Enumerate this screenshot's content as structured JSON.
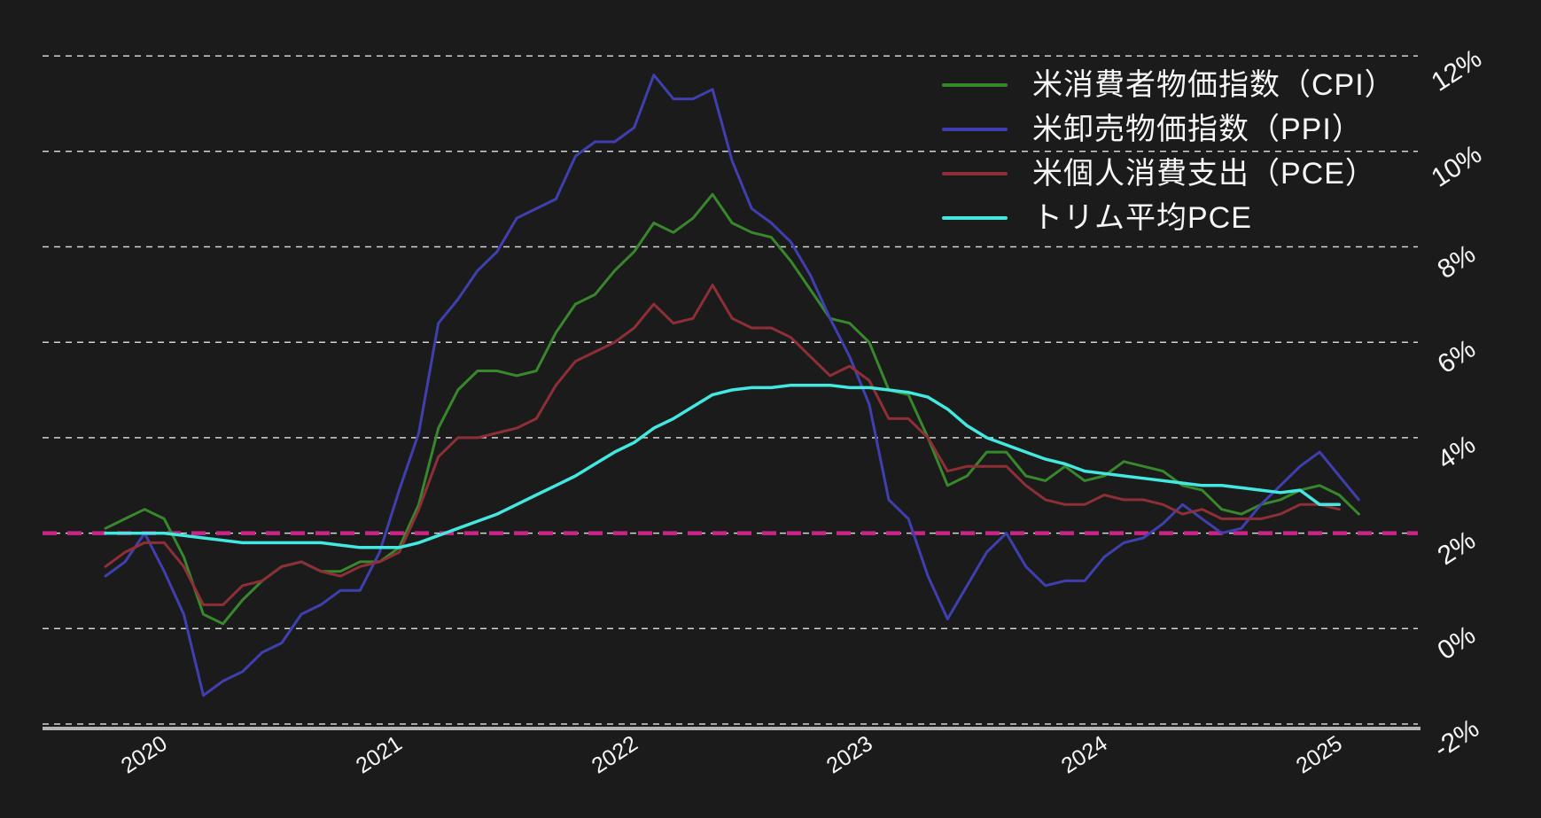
{
  "colors": {
    "background": "#1b1b1b",
    "gridline": "#d4d4d4",
    "axis_line": "#b5b5b5",
    "tick_text": "#f5f5f5",
    "target_line": "#c92586"
  },
  "legend": {
    "items": [
      {
        "label": "米消費者物価指数（CPI）",
        "color": "#38872c"
      },
      {
        "label": "米卸売物価指数（PPI）",
        "color": "#403fb0"
      },
      {
        "label": "米個人消費支出（PCE）",
        "color": "#8e2f37"
      },
      {
        "label": "トリム平均PCE",
        "color": "#43e8e0"
      }
    ]
  },
  "chart_data": {
    "type": "line",
    "x_start_month": "2019-11",
    "x_frequency": "monthly",
    "x_tick_years": [
      "2020",
      "2021",
      "2022",
      "2023",
      "2024",
      "2025"
    ],
    "y_tick_values": [
      12,
      10,
      8,
      6,
      4,
      2,
      0,
      -2
    ],
    "y_tick_suffix": "%",
    "ylim": [
      -2,
      12
    ],
    "grid": "horizontal-dashed",
    "legend_position": "top-right-inside",
    "target_line": {
      "value": 2,
      "color": "#c92586",
      "style": "dashed"
    },
    "series": [
      {
        "id": "cpi",
        "name": "米消費者物価指数（CPI）",
        "color": "#38872c",
        "width": 3,
        "values": [
          2.1,
          2.3,
          2.5,
          2.3,
          1.5,
          0.3,
          0.1,
          0.6,
          1.0,
          1.3,
          1.4,
          1.2,
          1.2,
          1.4,
          1.4,
          1.7,
          2.6,
          4.2,
          5.0,
          5.4,
          5.4,
          5.3,
          5.4,
          6.2,
          6.8,
          7.0,
          7.5,
          7.9,
          8.5,
          8.3,
          8.6,
          9.1,
          8.5,
          8.3,
          8.2,
          7.7,
          7.1,
          6.5,
          6.4,
          6.0,
          5.0,
          4.9,
          4.0,
          3.0,
          3.2,
          3.7,
          3.7,
          3.2,
          3.1,
          3.4,
          3.1,
          3.2,
          3.5,
          3.4,
          3.3,
          3.0,
          2.9,
          2.5,
          2.4,
          2.6,
          2.7,
          2.9,
          3.0,
          2.8,
          2.4
        ]
      },
      {
        "id": "ppi",
        "name": "米卸売物価指数（PPI）",
        "color": "#403fb0",
        "width": 3,
        "values": [
          1.1,
          1.4,
          2.0,
          1.2,
          0.3,
          -1.4,
          -1.1,
          -0.9,
          -0.5,
          -0.3,
          0.3,
          0.5,
          0.8,
          0.8,
          1.6,
          2.9,
          4.1,
          6.4,
          6.9,
          7.5,
          7.9,
          8.6,
          8.8,
          9.0,
          9.9,
          10.2,
          10.2,
          10.5,
          11.6,
          11.1,
          11.1,
          11.3,
          9.8,
          8.8,
          8.5,
          8.1,
          7.4,
          6.5,
          5.7,
          4.7,
          2.7,
          2.3,
          1.1,
          0.2,
          0.9,
          1.6,
          2.0,
          1.3,
          0.9,
          1.0,
          1.0,
          1.5,
          1.8,
          1.9,
          2.2,
          2.6,
          2.3,
          2.0,
          2.1,
          2.6,
          3.0,
          3.4,
          3.7,
          3.2,
          2.7
        ]
      },
      {
        "id": "pce",
        "name": "米個人消費支出（PCE）",
        "color": "#8e2f37",
        "width": 3,
        "values": [
          1.3,
          1.6,
          1.8,
          1.8,
          1.3,
          0.5,
          0.5,
          0.9,
          1.0,
          1.3,
          1.4,
          1.2,
          1.1,
          1.3,
          1.4,
          1.6,
          2.5,
          3.6,
          4.0,
          4.0,
          4.1,
          4.2,
          4.4,
          5.1,
          5.6,
          5.8,
          6.0,
          6.3,
          6.8,
          6.4,
          6.5,
          7.2,
          6.5,
          6.3,
          6.3,
          6.1,
          5.7,
          5.3,
          5.5,
          5.2,
          4.4,
          4.4,
          4.0,
          3.3,
          3.4,
          3.4,
          3.4,
          3.0,
          2.7,
          2.6,
          2.6,
          2.8,
          2.7,
          2.7,
          2.6,
          2.4,
          2.5,
          2.3,
          2.3,
          2.3,
          2.4,
          2.6,
          2.6,
          2.5
        ]
      },
      {
        "id": "trimmed_pce",
        "name": "トリム平均PCE",
        "color": "#43e8e0",
        "width": 3.5,
        "values": [
          2.0,
          2.0,
          2.0,
          2.0,
          1.95,
          1.9,
          1.85,
          1.8,
          1.8,
          1.8,
          1.8,
          1.8,
          1.75,
          1.7,
          1.7,
          1.7,
          1.8,
          1.95,
          2.1,
          2.25,
          2.4,
          2.6,
          2.8,
          3.0,
          3.2,
          3.45,
          3.7,
          3.9,
          4.2,
          4.4,
          4.65,
          4.9,
          5.0,
          5.05,
          5.05,
          5.1,
          5.1,
          5.1,
          5.05,
          5.05,
          5.0,
          4.95,
          4.85,
          4.6,
          4.25,
          4.0,
          3.85,
          3.7,
          3.55,
          3.45,
          3.3,
          3.25,
          3.2,
          3.15,
          3.1,
          3.05,
          3.0,
          3.0,
          2.95,
          2.9,
          2.85,
          2.9,
          2.6,
          2.6
        ]
      }
    ]
  }
}
